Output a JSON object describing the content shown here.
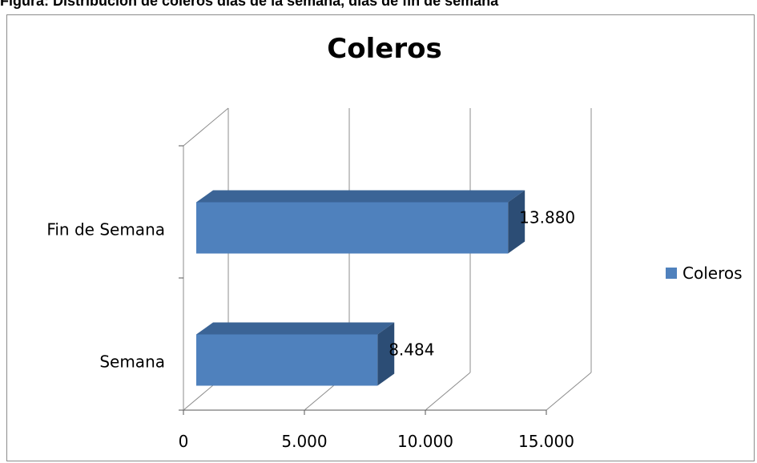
{
  "figure_caption": "Figura: Distribución de coleros días de la semana, días de fin de semana",
  "chart_data": {
    "type": "bar",
    "orientation": "horizontal",
    "title": "Coleros",
    "categories": [
      "Semana",
      "Fin de Semana"
    ],
    "series": [
      {
        "name": "Coleros",
        "values": [
          8484,
          13880
        ],
        "color": "#4f81bd"
      }
    ],
    "value_labels": [
      "8.484",
      "13.880"
    ],
    "x_ticks": [
      {
        "value": 0,
        "label": "0"
      },
      {
        "value": 5000,
        "label": "5.000"
      },
      {
        "value": 10000,
        "label": "10.000"
      },
      {
        "value": 15000,
        "label": "15.000"
      }
    ],
    "xlim": [
      0,
      15000
    ],
    "three_d": true,
    "grid": true,
    "legend_position": "right"
  }
}
